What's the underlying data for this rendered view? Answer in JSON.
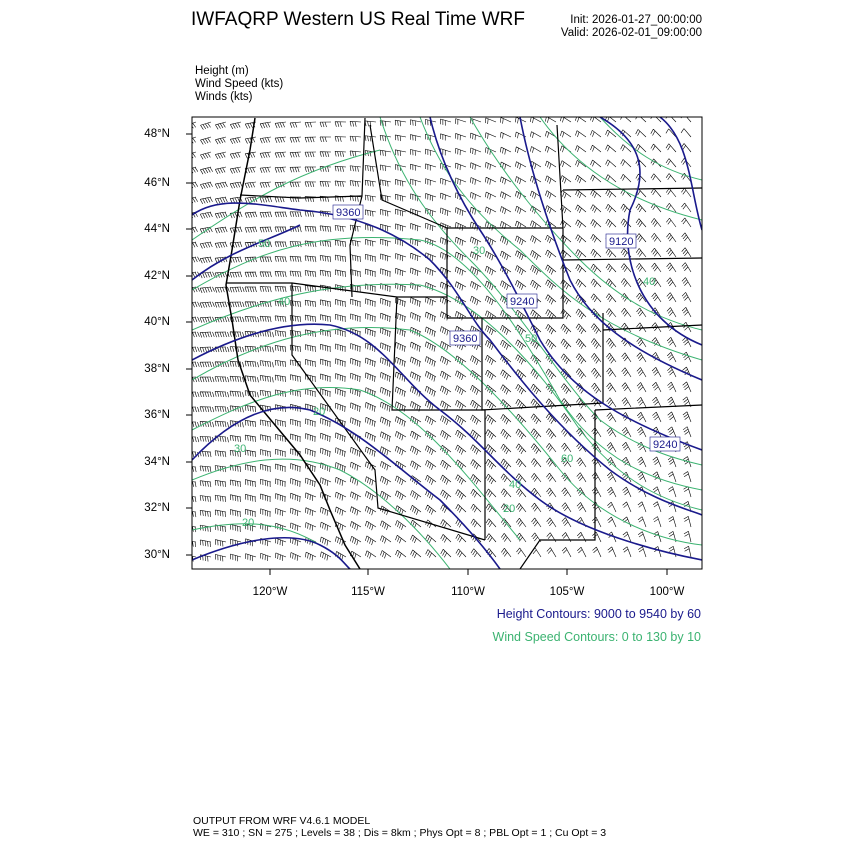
{
  "title": "IWFAQRP Western US Real Time WRF",
  "init": "Init: 2026-01-27_00:00:00",
  "valid": "Valid: 2026-02-01_09:00:00",
  "variables": [
    "Height   (m)",
    "Wind Speed   (kts)",
    "Winds   (kts)"
  ],
  "map": {
    "lat_labels": [
      "48°N",
      "46°N",
      "44°N",
      "42°N",
      "40°N",
      "38°N",
      "36°N",
      "34°N",
      "32°N",
      "30°N"
    ],
    "lon_labels": [
      "120°W",
      "115°W",
      "110°W",
      "105°W",
      "100°W"
    ],
    "height_labels": [
      "9360",
      "9120",
      "9240",
      "9360",
      "9240"
    ],
    "speed_labels": [
      "50",
      "30",
      "40",
      "20",
      "30",
      "20",
      "20",
      "40",
      "50",
      "60",
      "40"
    ],
    "colors": {
      "height": "#1a1a8c",
      "speed": "#3cb371",
      "borders": "#000000",
      "barbs": "#000000"
    }
  },
  "legend": {
    "height": "Height Contours: 9000 to 9540 by 60",
    "speed": "Wind Speed Contours: 0 to 130 by 10"
  },
  "footer": {
    "line1": "OUTPUT FROM WRF V4.6.1 MODEL",
    "line2": "WE = 310 ; SN = 275 ; Levels = 38 ; Dis = 8km ; Phys Opt = 8 ; PBL Opt = 1 ; Cu Opt = 3"
  }
}
